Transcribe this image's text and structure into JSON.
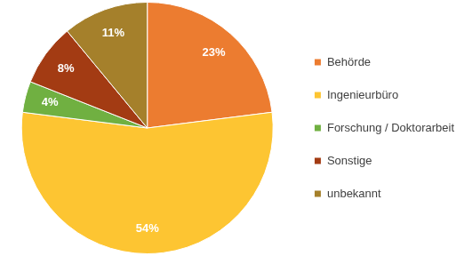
{
  "chart_data": {
    "type": "pie",
    "categories": [
      "Behörde",
      "Ingenieurbüro",
      "Forschung / Doktorarbeit",
      "Sonstige",
      "unbekannt"
    ],
    "values": [
      23,
      54,
      4,
      8,
      11
    ],
    "value_labels": [
      "23%",
      "54%",
      "4%",
      "8%",
      "11%"
    ],
    "colors": [
      "#ec7c30",
      "#fdc532",
      "#70b041",
      "#a33b13",
      "#a5802b"
    ],
    "data_labels": true,
    "legend": "right"
  }
}
